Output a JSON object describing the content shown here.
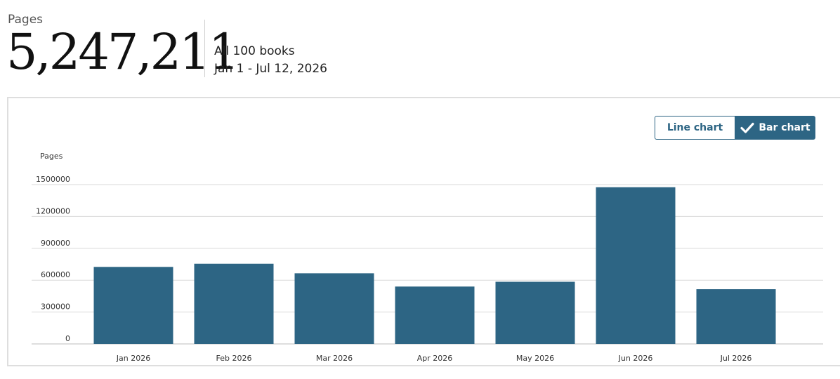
{
  "summary": {
    "label": "Pages",
    "total": "5,247,211",
    "scope": "All 100 books",
    "range": "Jan 1 - Jul 12, 2026"
  },
  "toggle": {
    "line_label": "Line chart",
    "bar_label": "Bar chart",
    "selected": "Bar chart",
    "icon": "check-icon"
  },
  "colors": {
    "bar": "#2d6584",
    "accent": "#2d6584"
  },
  "chart_data": {
    "type": "bar",
    "ylabel": "Pages",
    "ylim": [
      0,
      1500000
    ],
    "yticks": [
      "0",
      "300000",
      "600000",
      "900000",
      "1200000",
      "1500000"
    ],
    "ytick_values": [
      0,
      300000,
      600000,
      900000,
      1200000,
      1500000
    ],
    "categories": [
      "Jan 2026",
      "Feb 2026",
      "Mar 2026",
      "Apr 2026",
      "May 2026",
      "Jun 2026",
      "Jul 2026"
    ],
    "values": [
      725000,
      755000,
      665000,
      540000,
      585000,
      1475000,
      515000
    ],
    "grid": true,
    "legend": "none"
  }
}
